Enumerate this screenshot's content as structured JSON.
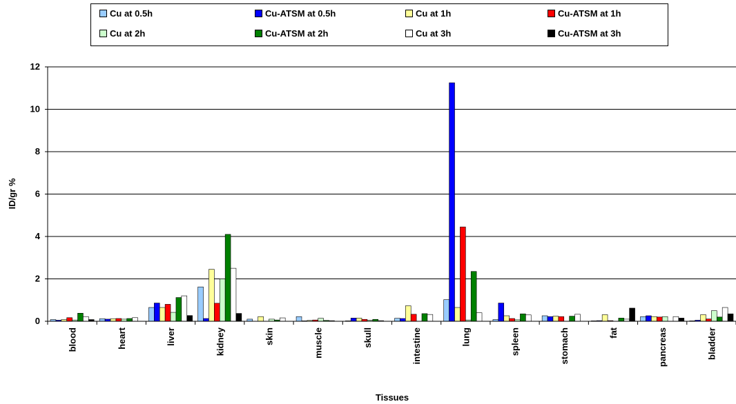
{
  "chart_data": {
    "type": "bar",
    "xlabel": "Tissues",
    "ylabel": "ID/gr %",
    "ylim": [
      0,
      12
    ],
    "yticks": [
      "0",
      "2",
      "4",
      "6",
      "8",
      "10",
      "12"
    ],
    "grid": true,
    "legend_position": "top",
    "categories": [
      "blood",
      "heart",
      "liver",
      "kidney",
      "skin",
      "muscle",
      "skull",
      "intestine",
      "lung",
      "spleen",
      "stomach",
      "fat",
      "pancreas",
      "bladder"
    ],
    "series": [
      {
        "name": "Cu at 0.5h",
        "color": "#99ccff",
        "values": [
          0.08,
          0.12,
          0.65,
          1.62,
          0.1,
          0.22,
          0.02,
          0.14,
          1.02,
          0.08,
          0.26,
          0.02,
          0.22,
          0.02
        ]
      },
      {
        "name": "Cu-ATSM at 0.5h",
        "color": "#0000ff",
        "values": [
          0.05,
          0.1,
          0.86,
          0.13,
          0.0,
          0.02,
          0.15,
          0.13,
          11.25,
          0.86,
          0.22,
          0.03,
          0.26,
          0.05
        ]
      },
      {
        "name": "Cu at 1h",
        "color": "#ffff99",
        "values": [
          0.08,
          0.12,
          0.65,
          2.45,
          0.22,
          0.04,
          0.15,
          0.73,
          0.65,
          0.26,
          0.24,
          0.31,
          0.22,
          0.31
        ]
      },
      {
        "name": "Cu-ATSM at 1h",
        "color": "#ff0000",
        "values": [
          0.17,
          0.13,
          0.8,
          0.85,
          0.0,
          0.06,
          0.09,
          0.33,
          4.45,
          0.13,
          0.22,
          0.03,
          0.2,
          0.11
        ]
      },
      {
        "name": "Cu at 2h",
        "color": "#ccffcc",
        "values": [
          0.06,
          0.1,
          0.42,
          2.0,
          0.1,
          0.14,
          0.05,
          0.0,
          0.06,
          0.07,
          0.0,
          0.0,
          0.22,
          0.5
        ]
      },
      {
        "name": "Cu-ATSM at 2h",
        "color": "#008000",
        "values": [
          0.38,
          0.13,
          1.12,
          4.1,
          0.06,
          0.04,
          0.09,
          0.36,
          2.35,
          0.35,
          0.24,
          0.15,
          0.0,
          0.2
        ]
      },
      {
        "name": "Cu at 3h",
        "color": "#ffffff",
        "values": [
          0.22,
          0.17,
          1.2,
          2.5,
          0.16,
          0.03,
          0.03,
          0.32,
          0.4,
          0.3,
          0.33,
          0.1,
          0.22,
          0.65
        ]
      },
      {
        "name": "Cu-ATSM at 3h",
        "color": "#000000",
        "values": [
          0.08,
          0.0,
          0.27,
          0.37,
          0.0,
          0.0,
          0.0,
          0.0,
          0.0,
          0.0,
          0.0,
          0.62,
          0.15,
          0.35
        ]
      }
    ]
  }
}
